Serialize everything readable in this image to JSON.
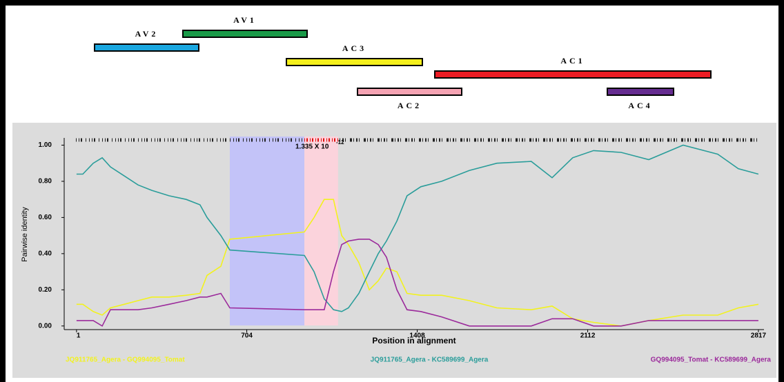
{
  "gene_map": {
    "genes": [
      {
        "label": "AV2",
        "color": "#1aa7e0"
      },
      {
        "label": "AV1",
        "color": "#1a9a48"
      },
      {
        "label": "AC3",
        "color": "#f4ef1c"
      },
      {
        "label": "AC1",
        "color": "#ec1c24"
      },
      {
        "label": "AC2",
        "color": "#f5a3b3"
      },
      {
        "label": "AC4",
        "color": "#662d91"
      }
    ]
  },
  "chart_data": {
    "type": "line",
    "annotation": "1.335 X 10",
    "annotation_exponent": "-12",
    "x_label": "Position in alignment",
    "y_label": "Pairwise identity",
    "xlim": [
      -50,
      2840
    ],
    "ylim": [
      -0.02,
      1.04
    ],
    "xticks": [
      1,
      704,
      1408,
      2112,
      2817
    ],
    "yticks": [
      {
        "value": 0,
        "label": "0.00"
      },
      {
        "value": 0.2,
        "label": "0.20"
      },
      {
        "value": 0.4,
        "label": "0.40"
      },
      {
        "value": 0.6,
        "label": "0.60"
      },
      {
        "value": 0.8,
        "label": "0.80"
      },
      {
        "value": 1,
        "label": "1.00"
      }
    ],
    "regions": [
      {
        "start": 634,
        "end": 942,
        "color": "#c3c3f8"
      },
      {
        "start": 942,
        "end": 1081,
        "color": "#fbd3dc"
      }
    ],
    "x": [
      1,
      27,
      70,
      107,
      141,
      198,
      255,
      312,
      383,
      454,
      511,
      540,
      597,
      634,
      942,
      982,
      1024,
      1062,
      1096,
      1124,
      1167,
      1210,
      1247,
      1281,
      1324,
      1366,
      1423,
      1509,
      1623,
      1737,
      1879,
      1965,
      2050,
      2136,
      2250,
      2364,
      2506,
      2649,
      2734,
      2817
    ],
    "series": [
      {
        "name": "JQ911765_Agera - GQ994095_Tomat",
        "color": "#f2f21e",
        "values": [
          0.12,
          0.12,
          0.08,
          0.06,
          0.1,
          0.12,
          0.14,
          0.16,
          0.16,
          0.17,
          0.18,
          0.28,
          0.33,
          0.48,
          0.52,
          0.6,
          0.7,
          0.7,
          0.5,
          0.45,
          0.35,
          0.2,
          0.25,
          0.32,
          0.3,
          0.18,
          0.17,
          0.17,
          0.14,
          0.1,
          0.09,
          0.11,
          0.04,
          0.02,
          0.0,
          0.03,
          0.06,
          0.06,
          0.1,
          0.12
        ]
      },
      {
        "name": "JQ911765_Agera - KC589699_Agera",
        "color": "#2a9d9a",
        "values": [
          0.84,
          0.84,
          0.9,
          0.93,
          0.88,
          0.83,
          0.78,
          0.75,
          0.72,
          0.7,
          0.67,
          0.6,
          0.5,
          0.42,
          0.39,
          0.3,
          0.15,
          0.09,
          0.08,
          0.1,
          0.18,
          0.3,
          0.4,
          0.47,
          0.58,
          0.72,
          0.77,
          0.8,
          0.86,
          0.9,
          0.91,
          0.82,
          0.93,
          0.97,
          0.96,
          0.92,
          1.0,
          0.95,
          0.87,
          0.84
        ]
      },
      {
        "name": "GQ994095_Tomat - KC589699_Agera",
        "color": "#9b2a9b",
        "values": [
          0.03,
          0.03,
          0.03,
          0.0,
          0.09,
          0.09,
          0.09,
          0.1,
          0.12,
          0.14,
          0.16,
          0.16,
          0.18,
          0.1,
          0.09,
          0.09,
          0.09,
          0.3,
          0.45,
          0.47,
          0.48,
          0.48,
          0.45,
          0.38,
          0.2,
          0.09,
          0.08,
          0.05,
          0.0,
          0.0,
          0.0,
          0.04,
          0.04,
          0.0,
          0.0,
          0.03,
          0.03,
          0.03,
          0.03,
          0.03
        ]
      }
    ]
  }
}
